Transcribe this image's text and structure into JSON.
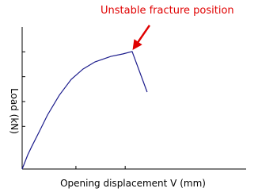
{
  "chart_data": {
    "type": "line",
    "x_label": "Opening displacement V (mm)",
    "y_label": "Load (kN)",
    "annotation": "Unstable fracture position",
    "x": [
      0,
      2.5,
      4.2,
      7.8,
      11.3,
      16.6,
      21.9,
      27.2,
      32.5,
      39.6,
      44.9,
      49.1,
      55.8
    ],
    "series": [
      {
        "color": "#1c1c8c",
        "values": [
          0,
          10,
          15.6,
          26.8,
          38,
          52,
          63.1,
          70.4,
          75.4,
          79.3,
          81,
          82.7,
          54.2
        ]
      }
    ],
    "xlim": [
      0,
      100
    ],
    "ylim": [
      0,
      100
    ],
    "xticks": [
      24,
      46
    ],
    "yticks": [
      30,
      47.5,
      65,
      82.5
    ]
  }
}
